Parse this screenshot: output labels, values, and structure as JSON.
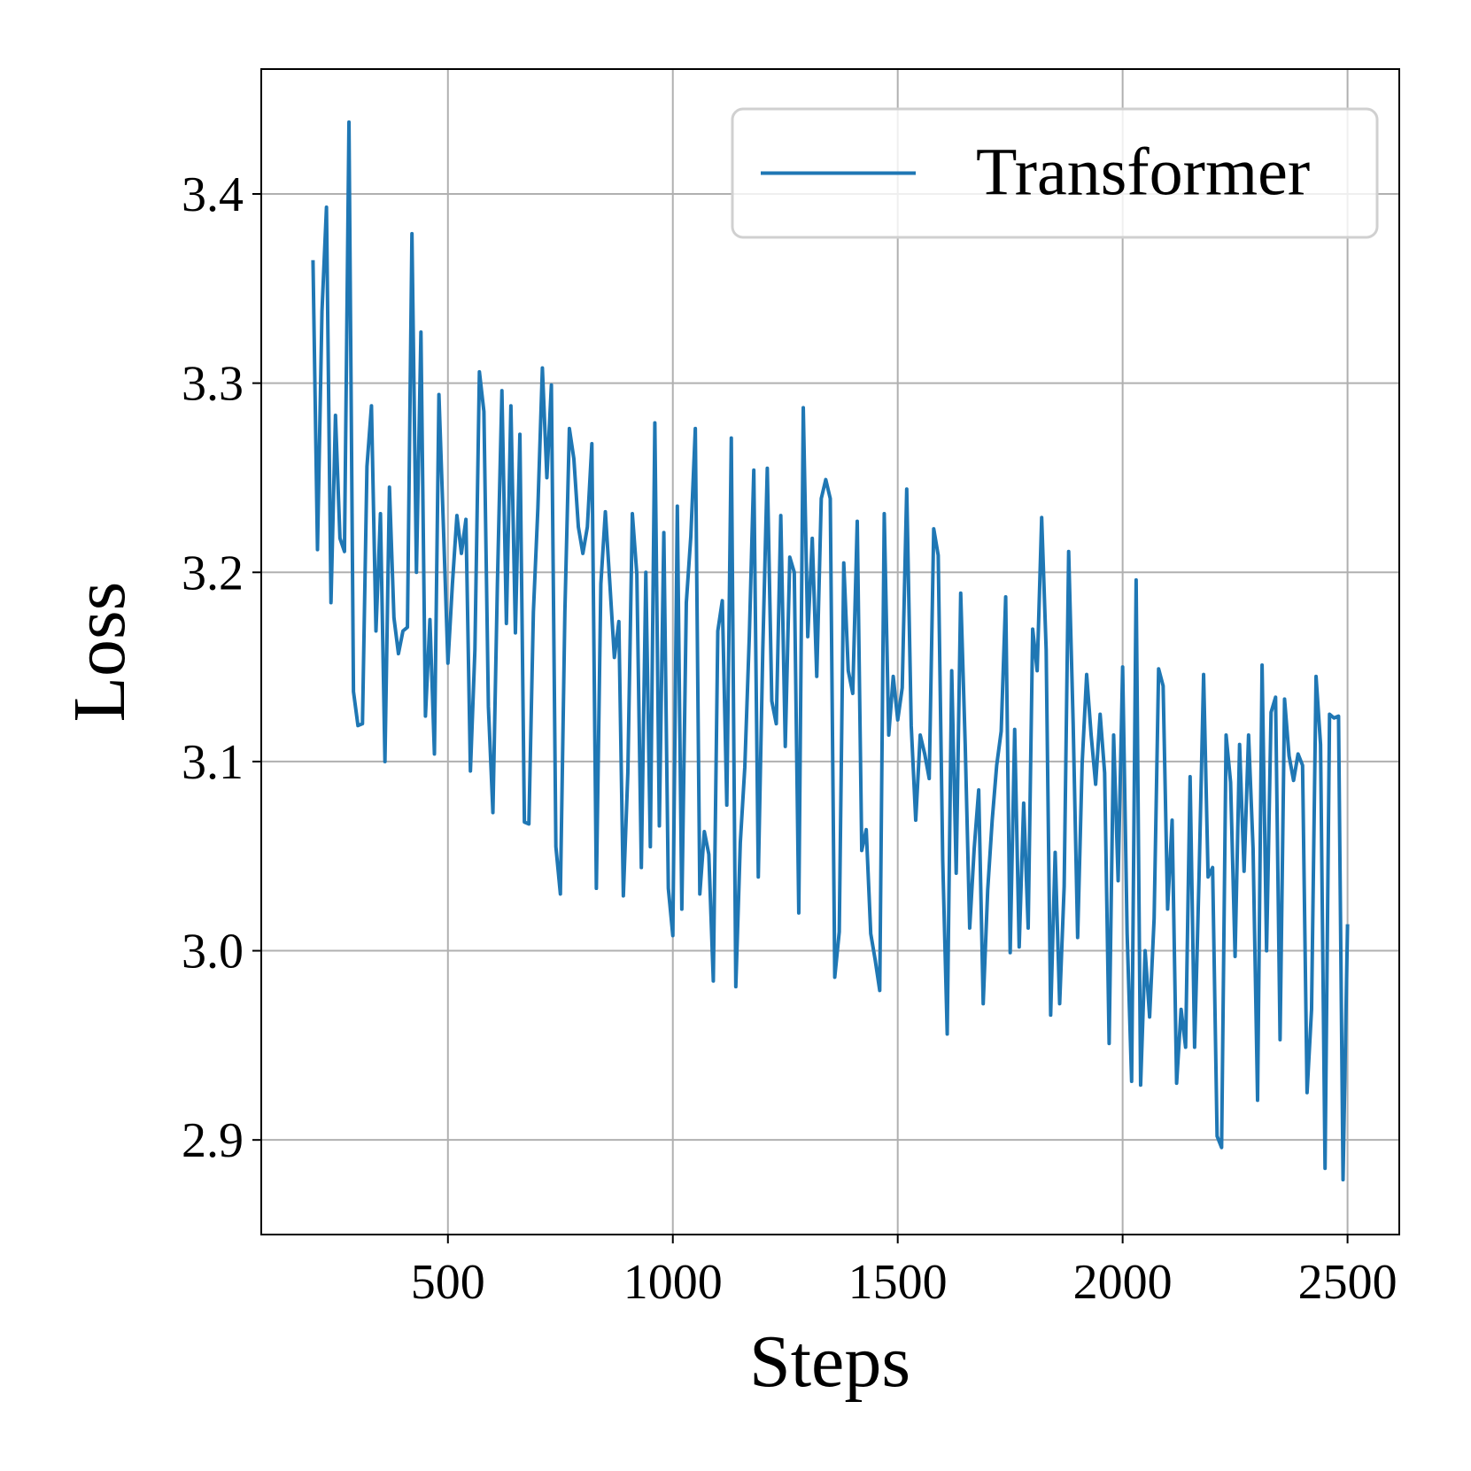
{
  "chart_data": {
    "type": "line",
    "xlabel": "Steps",
    "ylabel": "Loss",
    "x": [
      200,
      210,
      220,
      230,
      240,
      250,
      260,
      270,
      280,
      290,
      300,
      310,
      320,
      330,
      340,
      350,
      360,
      370,
      380,
      390,
      400,
      410,
      420,
      430,
      440,
      450,
      460,
      470,
      480,
      490,
      500,
      510,
      520,
      530,
      540,
      550,
      560,
      570,
      580,
      590,
      600,
      610,
      620,
      630,
      640,
      650,
      660,
      670,
      680,
      690,
      700,
      710,
      720,
      730,
      740,
      750,
      760,
      770,
      780,
      790,
      800,
      810,
      820,
      830,
      840,
      850,
      860,
      870,
      880,
      890,
      900,
      910,
      920,
      930,
      940,
      950,
      960,
      970,
      980,
      990,
      1000,
      1010,
      1020,
      1030,
      1040,
      1050,
      1060,
      1070,
      1080,
      1090,
      1100,
      1110,
      1120,
      1130,
      1140,
      1150,
      1160,
      1170,
      1180,
      1190,
      1200,
      1210,
      1220,
      1230,
      1240,
      1250,
      1260,
      1270,
      1280,
      1290,
      1300,
      1310,
      1320,
      1330,
      1340,
      1350,
      1360,
      1370,
      1380,
      1390,
      1400,
      1410,
      1420,
      1430,
      1440,
      1450,
      1460,
      1470,
      1480,
      1490,
      1500,
      1510,
      1520,
      1530,
      1540,
      1550,
      1560,
      1570,
      1580,
      1590,
      1600,
      1610,
      1620,
      1630,
      1640,
      1650,
      1660,
      1670,
      1680,
      1690,
      1700,
      1710,
      1720,
      1730,
      1740,
      1750,
      1760,
      1770,
      1780,
      1790,
      1800,
      1810,
      1820,
      1830,
      1840,
      1850,
      1860,
      1870,
      1880,
      1890,
      1900,
      1910,
      1920,
      1930,
      1940,
      1950,
      1960,
      1970,
      1980,
      1990,
      2000,
      2010,
      2020,
      2030,
      2040,
      2050,
      2060,
      2070,
      2080,
      2090,
      2100,
      2110,
      2120,
      2130,
      2140,
      2150,
      2160,
      2170,
      2180,
      2190,
      2200,
      2210,
      2220,
      2230,
      2240,
      2250,
      2260,
      2270,
      2280,
      2290,
      2300,
      2310,
      2320,
      2330,
      2340,
      2350,
      2360,
      2370,
      2380,
      2390,
      2400,
      2410,
      2420,
      2430,
      2440,
      2450,
      2460,
      2470,
      2480,
      2490,
      2500
    ],
    "series": [
      {
        "name": "Transformer",
        "color": "#1f77b4",
        "values": [
          3.365,
          3.212,
          3.338,
          3.393,
          3.184,
          3.283,
          3.218,
          3.211,
          3.438,
          3.137,
          3.119,
          3.12,
          3.256,
          3.288,
          3.169,
          3.231,
          3.1,
          3.245,
          3.176,
          3.157,
          3.169,
          3.171,
          3.379,
          3.2,
          3.327,
          3.124,
          3.175,
          3.104,
          3.294,
          3.224,
          3.152,
          3.194,
          3.23,
          3.21,
          3.228,
          3.095,
          3.159,
          3.306,
          3.285,
          3.129,
          3.073,
          3.194,
          3.296,
          3.173,
          3.288,
          3.168,
          3.273,
          3.068,
          3.067,
          3.179,
          3.234,
          3.308,
          3.25,
          3.299,
          3.055,
          3.03,
          3.179,
          3.276,
          3.26,
          3.224,
          3.21,
          3.224,
          3.268,
          3.033,
          3.194,
          3.232,
          3.194,
          3.155,
          3.174,
          3.029,
          3.094,
          3.231,
          3.199,
          3.044,
          3.2,
          3.055,
          3.279,
          3.066,
          3.221,
          3.033,
          3.008,
          3.235,
          3.022,
          3.184,
          3.219,
          3.276,
          3.03,
          3.063,
          3.051,
          2.984,
          3.169,
          3.185,
          3.077,
          3.271,
          2.981,
          3.057,
          3.097,
          3.166,
          3.254,
          3.039,
          3.159,
          3.255,
          3.132,
          3.12,
          3.23,
          3.108,
          3.208,
          3.2,
          3.02,
          3.287,
          3.166,
          3.218,
          3.145,
          3.239,
          3.249,
          3.239,
          2.986,
          3.01,
          3.205,
          3.148,
          3.136,
          3.227,
          3.053,
          3.064,
          3.009,
          2.995,
          2.979,
          3.231,
          3.114,
          3.145,
          3.122,
          3.139,
          3.244,
          3.119,
          3.069,
          3.114,
          3.104,
          3.091,
          3.223,
          3.209,
          3.048,
          2.956,
          3.148,
          3.041,
          3.189,
          3.109,
          3.012,
          3.054,
          3.085,
          2.972,
          3.032,
          3.069,
          3.098,
          3.116,
          3.187,
          2.999,
          3.117,
          3.002,
          3.078,
          3.012,
          3.17,
          3.148,
          3.229,
          3.159,
          2.966,
          3.052,
          2.972,
          3.034,
          3.211,
          3.12,
          3.007,
          3.099,
          3.146,
          3.114,
          3.088,
          3.125,
          3.094,
          2.951,
          3.114,
          3.037,
          3.15,
          3.009,
          2.931,
          3.196,
          2.929,
          3.0,
          2.965,
          3.017,
          3.149,
          3.14,
          3.022,
          3.069,
          2.93,
          2.969,
          2.949,
          3.092,
          2.949,
          3.04,
          3.146,
          3.039,
          3.044,
          2.902,
          2.896,
          3.114,
          3.089,
          2.997,
          3.109,
          3.042,
          3.114,
          3.054,
          2.921,
          3.151,
          3.0,
          3.126,
          3.134,
          2.953,
          3.133,
          3.103,
          3.09,
          3.104,
          3.098,
          2.925,
          2.969,
          3.145,
          3.109,
          2.885,
          3.125,
          3.123,
          3.124,
          2.879,
          3.014
        ]
      }
    ],
    "xlim": [
      85,
      2615
    ],
    "ylim": [
      2.85,
      3.466
    ],
    "xticks": [
      500,
      1000,
      1500,
      2000,
      2500
    ],
    "yticks": [
      2.9,
      {
        "value": 3,
        "label": "3.0"
      },
      3.1,
      3.2,
      3.3,
      3.4
    ],
    "grid": true,
    "legend": "upper right"
  }
}
